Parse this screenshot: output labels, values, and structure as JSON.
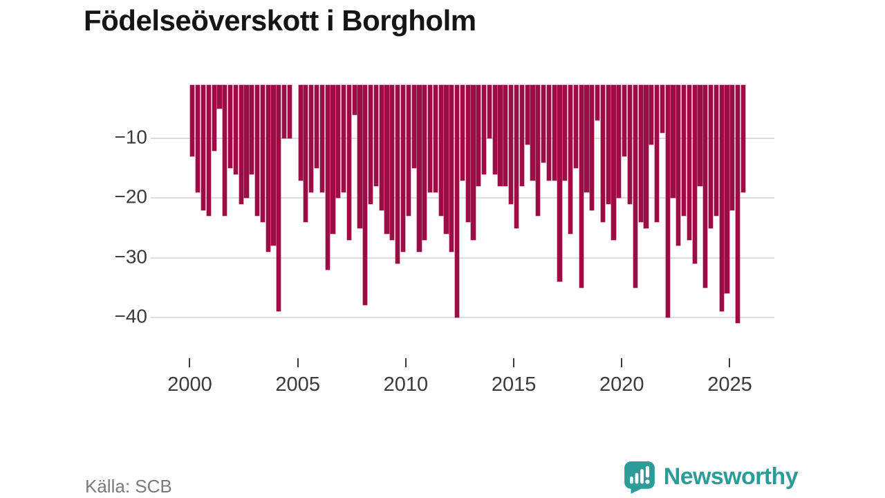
{
  "title": "Födelseöverskott i Borgholm",
  "source": {
    "text": "Källa: SCB"
  },
  "branding": {
    "name": "Newsworthy"
  },
  "colors": {
    "bar": "#9c0c45",
    "grid": "#dcdcdc",
    "axis_text": "#3a3a3a",
    "title_text": "#151515",
    "source_text": "#7a7a7a",
    "brand_teal": "#2b9c97",
    "background": "#ffffff"
  },
  "chart_data": {
    "type": "bar",
    "title": "Födelseöverskott i Borgholm",
    "orientation": "vertical-negative",
    "period": "quarterly",
    "x_start_year": 2000,
    "x_tick_labels": [
      "2000",
      "2005",
      "2010",
      "2015",
      "2020",
      "2025"
    ],
    "x_tick_quarter_index": [
      0,
      20,
      40,
      60,
      80,
      100
    ],
    "y_ticks": [
      {
        "value": -10,
        "label": "−10"
      },
      {
        "value": -20,
        "label": "−20"
      },
      {
        "value": -30,
        "label": "−30"
      },
      {
        "value": -40,
        "label": "−40"
      }
    ],
    "ylim": [
      -43,
      0
    ],
    "grid": "horizontal",
    "legend": "none",
    "values": [
      -13,
      -19,
      -22,
      -23,
      -12,
      -5,
      -23,
      -15,
      -16,
      -21,
      -20,
      -16,
      -23,
      -24,
      -29,
      -28,
      -39,
      -10,
      -10,
      0,
      -17,
      -24,
      -19,
      -15,
      -19,
      -32,
      -26,
      -20,
      -19,
      -27,
      -6,
      -25,
      -38,
      -21,
      -18,
      -22,
      -26,
      -27,
      -31,
      -29,
      -23,
      -15,
      -29,
      -27,
      -19,
      -19,
      -23,
      -26,
      -29,
      -40,
      -17,
      -24,
      -27,
      -18,
      -16,
      -10,
      -16,
      -18,
      -18,
      -21,
      -25,
      -18,
      -11,
      -17,
      -23,
      -14,
      -17,
      -17,
      -34,
      -17,
      -26,
      -15,
      -35,
      -19,
      -22,
      -7,
      -24,
      -21,
      -27,
      -20,
      -13,
      -21,
      -35,
      -24,
      -25,
      -11,
      -24,
      -9,
      -40,
      -20,
      -28,
      -23,
      -27,
      -31,
      -18,
      -35,
      -25,
      -23,
      -39,
      -36,
      -22,
      -41,
      -19
    ]
  }
}
